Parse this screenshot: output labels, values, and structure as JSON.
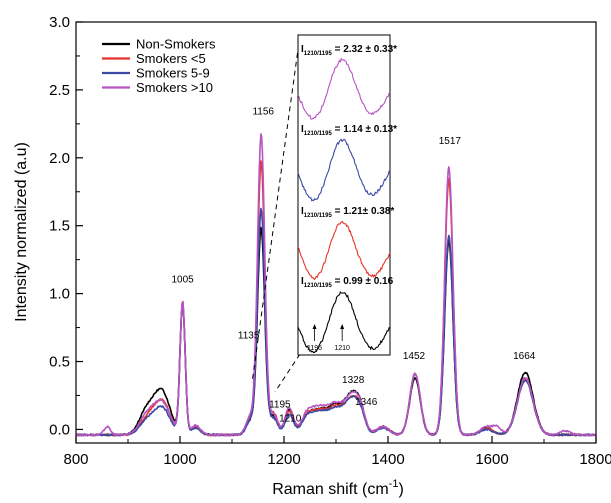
{
  "chart_data": {
    "type": "line",
    "xlabel": "Raman shift (cm",
    "xlabel_sup": "-1",
    "xlabel_close": ")",
    "ylabel": "Intensity normalized (a.u)",
    "xlim": [
      800,
      1800
    ],
    "ylim": [
      -0.1,
      3.0
    ],
    "xticks": [
      800,
      1000,
      1200,
      1400,
      1600,
      1800
    ],
    "yticks": [
      0.0,
      0.5,
      1.0,
      1.5,
      2.0,
      2.5,
      3.0
    ],
    "xtick_labels": [
      "800",
      "1000",
      "1200",
      "1400",
      "1600",
      "1800"
    ],
    "ytick_labels": [
      "0.0",
      "0.5",
      "1.0",
      "1.5",
      "2.0",
      "2.5",
      "3.0"
    ],
    "legend_position": "top-left",
    "series": [
      {
        "name": "Non-Smokers",
        "color": "#000000",
        "peaks": [
          [
            935,
            0.16,
            14
          ],
          [
            965,
            0.32,
            16
          ],
          [
            1005,
            0.96,
            5
          ],
          [
            1030,
            0.06,
            9
          ],
          [
            1135,
            0.1,
            8
          ],
          [
            1156,
            1.52,
            7
          ],
          [
            1180,
            0.14,
            8
          ],
          [
            1210,
            0.18,
            8
          ],
          [
            1245,
            0.13,
            12
          ],
          [
            1270,
            0.16,
            14
          ],
          [
            1300,
            0.2,
            14
          ],
          [
            1328,
            0.25,
            12
          ],
          [
            1346,
            0.19,
            10
          ],
          [
            1390,
            0.06,
            12
          ],
          [
            1452,
            0.42,
            10
          ],
          [
            1517,
            1.43,
            8
          ],
          [
            1590,
            0.05,
            12
          ],
          [
            1664,
            0.46,
            15
          ]
        ]
      },
      {
        "name": "Smokers <5",
        "color": "#e8322b",
        "peaks": [
          [
            935,
            0.1,
            14
          ],
          [
            965,
            0.25,
            16
          ],
          [
            1005,
            0.97,
            5
          ],
          [
            1030,
            0.06,
            9
          ],
          [
            1135,
            0.12,
            8
          ],
          [
            1156,
            2.01,
            7
          ],
          [
            1180,
            0.16,
            8
          ],
          [
            1210,
            0.17,
            8
          ],
          [
            1245,
            0.13,
            12
          ],
          [
            1270,
            0.16,
            14
          ],
          [
            1300,
            0.19,
            14
          ],
          [
            1328,
            0.22,
            12
          ],
          [
            1346,
            0.17,
            10
          ],
          [
            1390,
            0.06,
            12
          ],
          [
            1452,
            0.45,
            10
          ],
          [
            1517,
            1.88,
            8
          ],
          [
            1590,
            0.05,
            12
          ],
          [
            1664,
            0.41,
            15
          ]
        ]
      },
      {
        "name": "Smokers 5-9",
        "color": "#3b4aa6",
        "peaks": [
          [
            935,
            0.09,
            14
          ],
          [
            965,
            0.2,
            16
          ],
          [
            1005,
            0.96,
            5
          ],
          [
            1030,
            0.05,
            9
          ],
          [
            1135,
            0.1,
            8
          ],
          [
            1156,
            1.66,
            7
          ],
          [
            1180,
            0.12,
            8
          ],
          [
            1210,
            0.15,
            8
          ],
          [
            1245,
            0.12,
            12
          ],
          [
            1270,
            0.15,
            14
          ],
          [
            1300,
            0.18,
            14
          ],
          [
            1328,
            0.22,
            12
          ],
          [
            1346,
            0.16,
            10
          ],
          [
            1390,
            0.05,
            12
          ],
          [
            1452,
            0.45,
            10
          ],
          [
            1517,
            1.47,
            8
          ],
          [
            1590,
            0.04,
            12
          ],
          [
            1664,
            0.4,
            15
          ]
        ]
      },
      {
        "name": "Smokers >10",
        "color": "#b654c2",
        "peaks": [
          [
            860,
            0.06,
            6
          ],
          [
            935,
            0.13,
            14
          ],
          [
            965,
            0.24,
            16
          ],
          [
            1005,
            0.97,
            5
          ],
          [
            1030,
            0.07,
            9
          ],
          [
            1135,
            0.13,
            8
          ],
          [
            1156,
            2.21,
            7
          ],
          [
            1180,
            0.15,
            8
          ],
          [
            1210,
            0.2,
            8
          ],
          [
            1245,
            0.15,
            12
          ],
          [
            1270,
            0.18,
            14
          ],
          [
            1300,
            0.21,
            14
          ],
          [
            1328,
            0.24,
            12
          ],
          [
            1346,
            0.19,
            10
          ],
          [
            1390,
            0.06,
            12
          ],
          [
            1452,
            0.45,
            10
          ],
          [
            1517,
            1.97,
            8
          ],
          [
            1590,
            0.06,
            12
          ],
          [
            1610,
            0.05,
            8
          ],
          [
            1664,
            0.42,
            15
          ],
          [
            1740,
            0.03,
            10
          ]
        ]
      }
    ],
    "peak_labels": [
      {
        "text": "1005",
        "x": 1005,
        "y": 1.08
      },
      {
        "text": "1135",
        "x": 1132,
        "y": 0.67
      },
      {
        "text": "1156",
        "x": 1160,
        "y": 2.32
      },
      {
        "text": "1195",
        "x": 1192,
        "y": 0.16
      },
      {
        "text": "1210",
        "x": 1212,
        "y": 0.06
      },
      {
        "text": "1328",
        "x": 1333,
        "y": 0.34
      },
      {
        "text": "1346",
        "x": 1358,
        "y": 0.18
      },
      {
        "text": "1452",
        "x": 1450,
        "y": 0.52
      },
      {
        "text": "1517",
        "x": 1519,
        "y": 2.1
      },
      {
        "text": "1664",
        "x": 1662,
        "y": 0.52
      }
    ],
    "inset": {
      "annotations": [
        {
          "label": "I",
          "sub": "1210/1195",
          "value": " = 2.32 ± 0.33*"
        },
        {
          "label": "I",
          "sub": "1210/1195",
          "value": " = 1.14 ± 0.13*"
        },
        {
          "label": "I",
          "sub": "1210/1195",
          "value": " = 1.21± 0.38*"
        },
        {
          "label": "I",
          "sub": "1210/1195",
          "value": " = 0.99 ± 0.16"
        }
      ],
      "tick_labels": [
        "1195",
        "1210"
      ]
    }
  }
}
